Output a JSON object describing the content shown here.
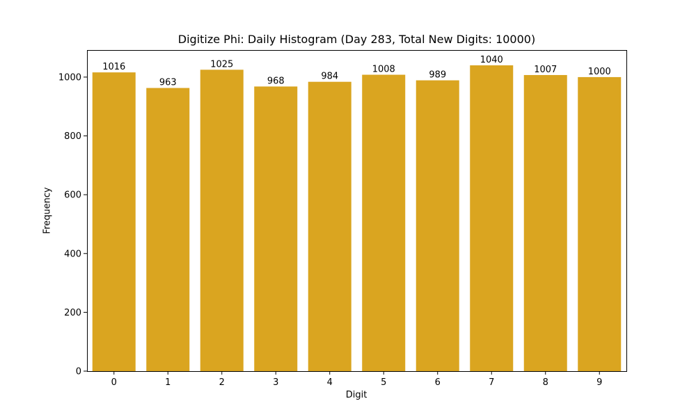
{
  "chart_data": {
    "type": "bar",
    "title": "Digitize Phi: Daily Histogram (Day 283, Total New Digits: 10000)",
    "xlabel": "Digit",
    "ylabel": "Frequency",
    "categories": [
      "0",
      "1",
      "2",
      "3",
      "4",
      "5",
      "6",
      "7",
      "8",
      "9"
    ],
    "values": [
      1016,
      963,
      1025,
      968,
      984,
      1008,
      989,
      1040,
      1007,
      1000
    ],
    "data_labels": [
      "1016",
      "963",
      "1025",
      "968",
      "984",
      "1008",
      "989",
      "1040",
      "1007",
      "1000"
    ],
    "yticks": [
      0,
      200,
      400,
      600,
      800,
      1000
    ],
    "ylim": [
      0,
      1092
    ],
    "xlim": [
      -0.5,
      9.5
    ],
    "bar_color": "#DAA520",
    "grid": false,
    "legend": null
  }
}
